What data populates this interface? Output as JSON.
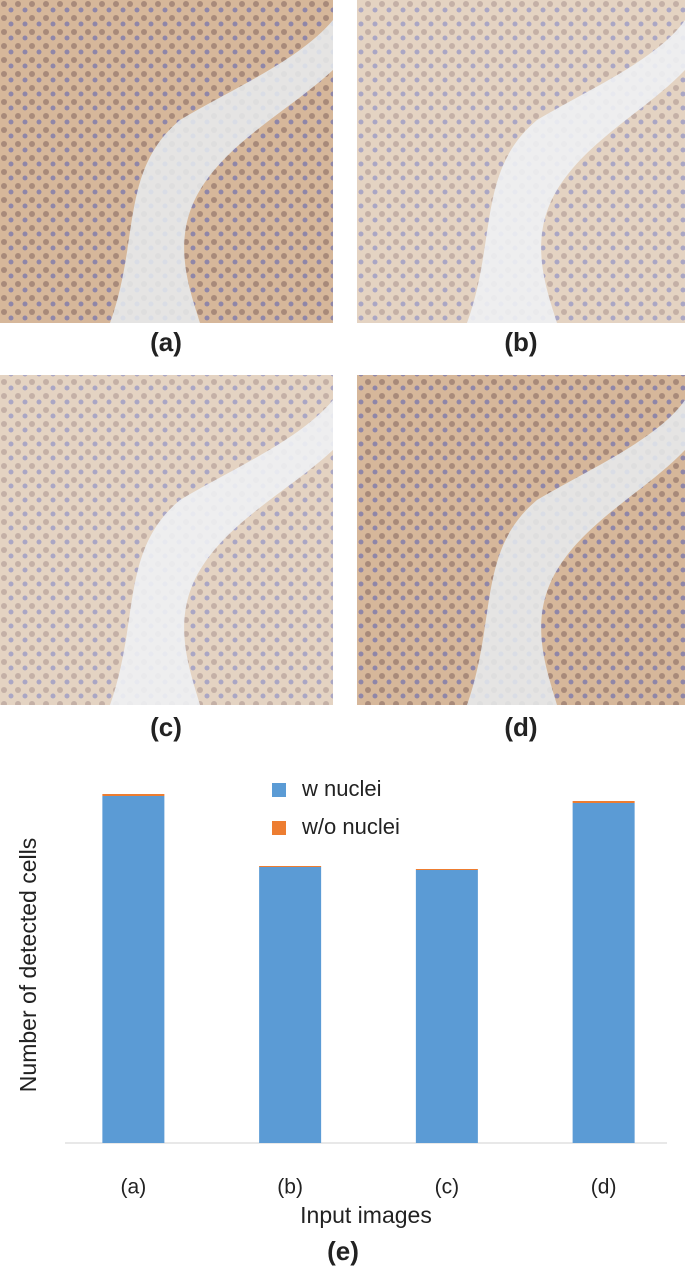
{
  "panels": [
    {
      "label": "(a)"
    },
    {
      "label": "(b)"
    },
    {
      "label": "(c)"
    },
    {
      "label": "(d)"
    }
  ],
  "chart_data": {
    "type": "stacked-bar",
    "caption": "(e)",
    "x_label": "Input images",
    "y_label": "Number of detected cells",
    "categories": [
      "(a)",
      "(b)",
      "(c)",
      "(d)"
    ],
    "series": [
      {
        "name": "w nuclei",
        "color": "#5b9bd5",
        "values": [
          347,
          276,
          273,
          340
        ]
      },
      {
        "name": "w/o nuclei",
        "color": "#ed7d31",
        "values": [
          2,
          1,
          1,
          2
        ]
      }
    ],
    "ylim": [
      0,
      400
    ],
    "legend": "top"
  }
}
